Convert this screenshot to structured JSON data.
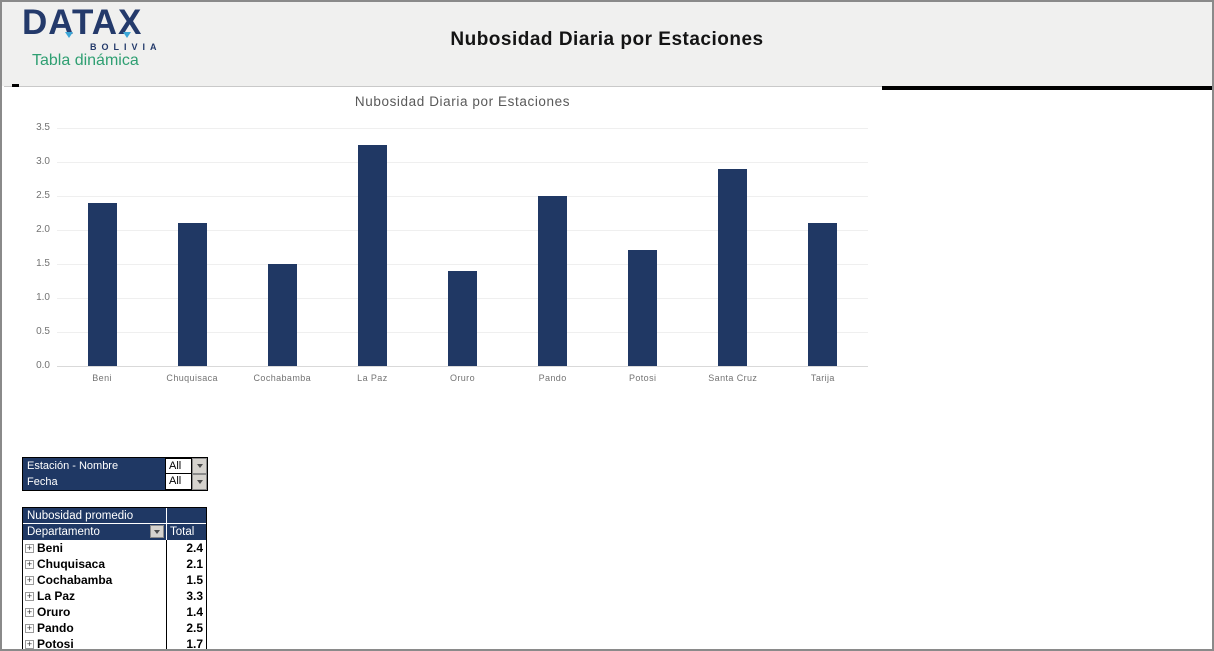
{
  "header": {
    "logo_brand": "DATAX",
    "logo_sub": "BOLIVIA",
    "logo_tagline": "Tabla dinámica",
    "title": "Nubosidad Diaria por Estaciones",
    "brand_color": "#243a6b",
    "accent_color": "#3ba6d8",
    "tagline_color": "#2f9f72"
  },
  "chart_data": {
    "type": "bar",
    "title": "Nubosidad Diaria por Estaciones",
    "categories": [
      "Beni",
      "Chuquisaca",
      "Cochabamba",
      "La Paz",
      "Oruro",
      "Pando",
      "Potosi",
      "Santa Cruz",
      "Tarija"
    ],
    "values": [
      2.4,
      2.1,
      1.5,
      3.25,
      1.4,
      2.5,
      1.7,
      2.9,
      2.1
    ],
    "xlabel": "",
    "ylabel": "",
    "ylim": [
      0,
      3.5
    ],
    "yticks": [
      0.0,
      0.5,
      1.0,
      1.5,
      2.0,
      2.5,
      3.0,
      3.5
    ],
    "grid": true,
    "legend": "none",
    "bar_color": "#203864"
  },
  "filters": [
    {
      "label": "Estación - Nombre",
      "value": "All"
    },
    {
      "label": "Fecha",
      "value": "All"
    }
  ],
  "pivot": {
    "title": "Nubosidad promedio",
    "row_header": "Departamento",
    "value_header": "Total",
    "rows": [
      {
        "name": "Beni",
        "total": "2.4"
      },
      {
        "name": "Chuquisaca",
        "total": "2.1"
      },
      {
        "name": "Cochabamba",
        "total": "1.5"
      },
      {
        "name": "La Paz",
        "total": "3.3"
      },
      {
        "name": "Oruro",
        "total": "1.4"
      },
      {
        "name": "Pando",
        "total": "2.5"
      },
      {
        "name": "Potosi",
        "total": "1.7"
      }
    ],
    "expand_glyph": "+"
  },
  "colors": {
    "navy": "#1f3864",
    "header_bg": "#f0f0ef",
    "axis_text": "#737373",
    "chart_title_text": "#595959"
  }
}
